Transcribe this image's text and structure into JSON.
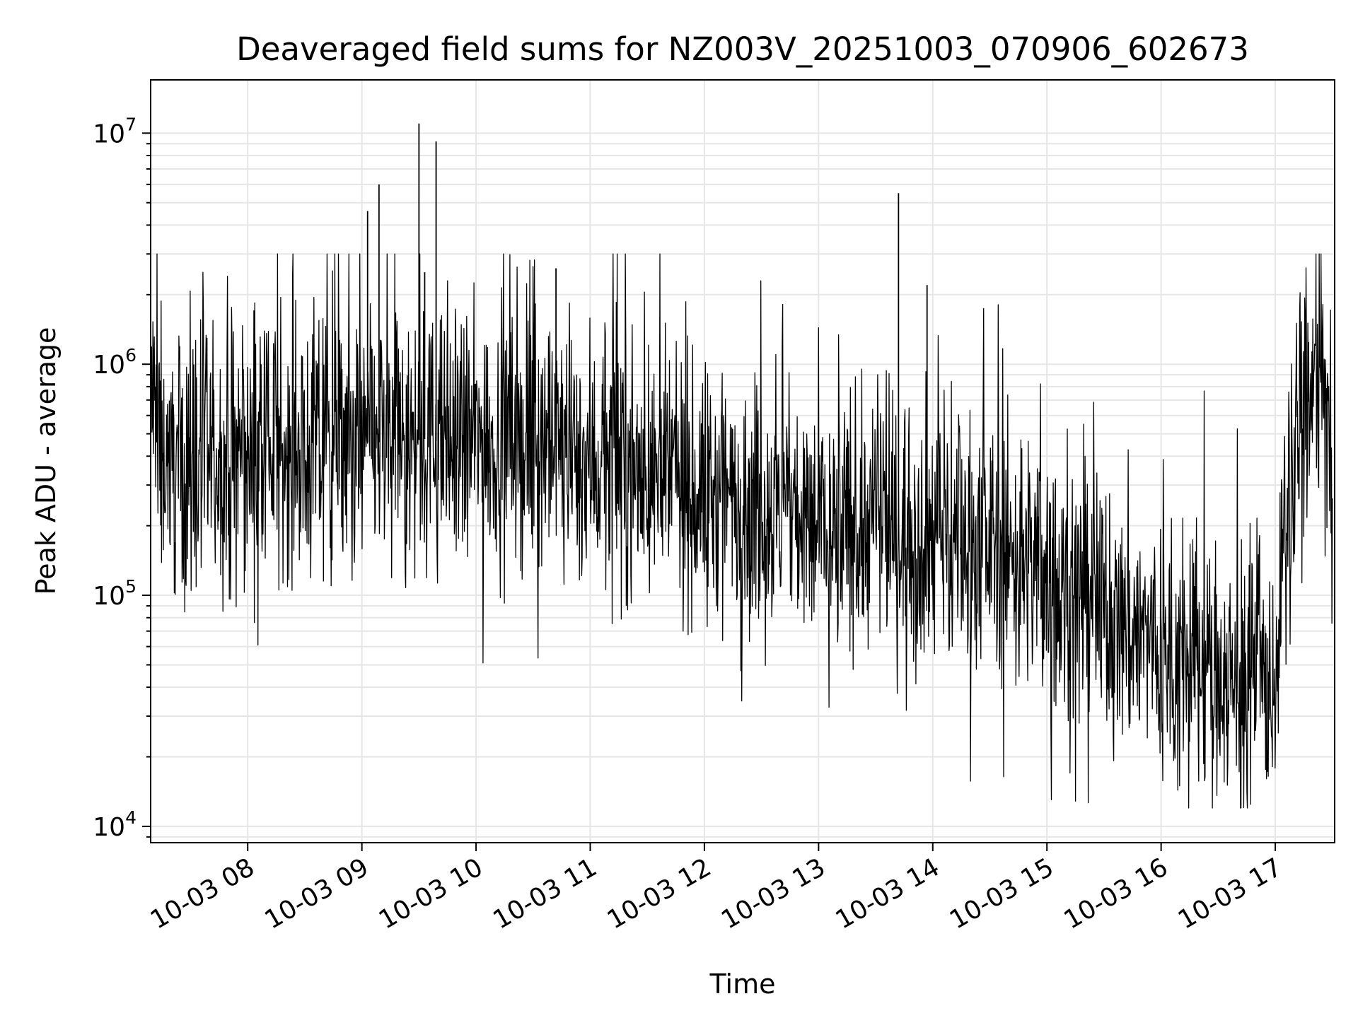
{
  "chart_data": {
    "type": "line",
    "title": "Deaveraged field sums for NZ003V_20251003_070906_602673",
    "xlabel": "Time",
    "ylabel": "Peak ADU - average",
    "yscale": "log",
    "ylim": [
      8500,
      17000000
    ],
    "xlim_hours": [
      7.15,
      17.52
    ],
    "grid": true,
    "x_ticks": [
      {
        "label": "10-03 08",
        "hour": 8
      },
      {
        "label": "10-03 09",
        "hour": 9
      },
      {
        "label": "10-03 10",
        "hour": 10
      },
      {
        "label": "10-03 11",
        "hour": 11
      },
      {
        "label": "10-03 12",
        "hour": 12
      },
      {
        "label": "10-03 13",
        "hour": 13
      },
      {
        "label": "10-03 14",
        "hour": 14
      },
      {
        "label": "10-03 15",
        "hour": 15
      },
      {
        "label": "10-03 16",
        "hour": 16
      },
      {
        "label": "10-03 17",
        "hour": 17
      }
    ],
    "y_ticks": [
      {
        "base": "10",
        "exp": "4",
        "value": 10000
      },
      {
        "base": "10",
        "exp": "5",
        "value": 100000
      },
      {
        "base": "10",
        "exp": "6",
        "value": 1000000
      },
      {
        "base": "10",
        "exp": "7",
        "value": 10000000
      }
    ],
    "series": [
      {
        "name": "Deaveraged field sum",
        "color": "#000000",
        "x_hours": [
          7.15,
          7.2,
          7.3,
          7.4,
          7.5,
          7.6,
          7.7,
          7.8,
          7.9,
          8.0,
          8.1,
          8.2,
          8.3,
          8.4,
          8.5,
          8.6,
          8.7,
          8.8,
          8.9,
          9.0,
          9.1,
          9.2,
          9.3,
          9.4,
          9.5,
          9.6,
          9.7,
          9.8,
          9.9,
          10.0,
          10.1,
          10.2,
          10.3,
          10.4,
          10.5,
          10.6,
          10.7,
          10.8,
          10.9,
          11.0,
          11.1,
          11.2,
          11.3,
          11.4,
          11.5,
          11.6,
          11.7,
          11.8,
          11.9,
          12.0,
          12.1,
          12.2,
          12.3,
          12.4,
          12.5,
          12.6,
          12.7,
          12.8,
          12.9,
          13.0,
          13.1,
          13.2,
          13.3,
          13.4,
          13.5,
          13.6,
          13.7,
          13.8,
          13.9,
          14.0,
          14.1,
          14.2,
          14.3,
          14.4,
          14.5,
          14.6,
          14.7,
          14.8,
          14.9,
          15.0,
          15.1,
          15.2,
          15.3,
          15.4,
          15.5,
          15.6,
          15.7,
          15.8,
          15.9,
          16.0,
          16.1,
          16.2,
          16.3,
          16.4,
          16.5,
          16.6,
          16.7,
          16.8,
          16.9,
          17.0,
          17.1,
          17.2,
          17.3,
          17.4,
          17.5
        ],
        "values": [
          800000,
          500000,
          400000,
          350000,
          380000,
          360000,
          370000,
          340000,
          380000,
          400000,
          390000,
          420000,
          410000,
          430000,
          450000,
          440000,
          420000,
          460000,
          430000,
          450000,
          470000,
          450000,
          480000,
          460000,
          470000,
          480000,
          450000,
          440000,
          460000,
          470000,
          480000,
          460000,
          470000,
          450000,
          480000,
          470000,
          440000,
          420000,
          400000,
          390000,
          380000,
          370000,
          360000,
          350000,
          340000,
          330000,
          320000,
          300000,
          290000,
          280000,
          270000,
          260000,
          250000,
          240000,
          230000,
          220000,
          230000,
          220000,
          210000,
          200000,
          210000,
          200000,
          190000,
          200000,
          210000,
          200000,
          210000,
          200000,
          190000,
          200000,
          190000,
          180000,
          190000,
          180000,
          170000,
          160000,
          150000,
          140000,
          130000,
          120000,
          110000,
          100000,
          95000,
          90000,
          85000,
          80000,
          75000,
          70000,
          65000,
          60000,
          55000,
          50000,
          48000,
          46000,
          45000,
          44000,
          43000,
          42000,
          40000,
          45000,
          200000,
          500000,
          700000,
          900000,
          300000
        ]
      }
    ],
    "spikes": [
      {
        "hour": 9.5,
        "value": 11000000
      },
      {
        "hour": 9.65,
        "value": 9200000
      },
      {
        "hour": 9.15,
        "value": 6000000
      },
      {
        "hour": 9.05,
        "value": 4600000
      },
      {
        "hour": 13.7,
        "value": 5500000
      },
      {
        "hour": 9.55,
        "value": 2500000
      },
      {
        "hour": 10.7,
        "value": 2600000
      },
      {
        "hour": 13.95,
        "value": 2200000
      }
    ]
  }
}
